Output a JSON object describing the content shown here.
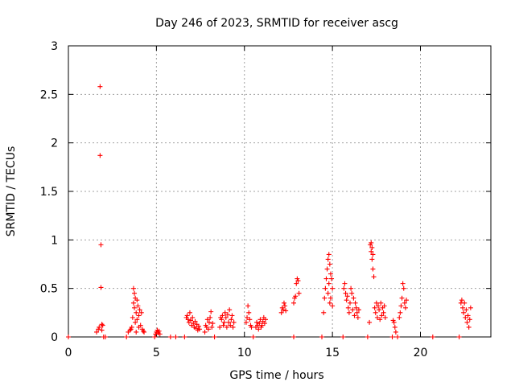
{
  "chart_data": {
    "type": "scatter",
    "title": "Day 246 of 2023, SRMTID for receiver ascg",
    "xlabel": "GPS time / hours",
    "ylabel": "SRMTID / TECUs",
    "xlim": [
      0,
      24
    ],
    "ylim": [
      0,
      3
    ],
    "xticks": [
      0,
      5,
      10,
      15,
      20
    ],
    "xtick_labels": [
      "0",
      "5",
      "10",
      "15",
      "20"
    ],
    "yticks": [
      0,
      0.5,
      1,
      1.5,
      2,
      2.5,
      3
    ],
    "ytick_labels": [
      "0",
      "0.5",
      "1",
      "1.5",
      "2",
      "2.5",
      "3"
    ],
    "grid": true,
    "marker": "+",
    "color": "#ff0000",
    "series": [
      {
        "name": "SRMTID",
        "x": [
          0.0,
          1.6,
          1.7,
          1.75,
          1.8,
          1.8,
          1.85,
          1.85,
          1.9,
          1.9,
          1.95,
          2.0,
          2.1,
          3.3,
          3.4,
          3.5,
          3.55,
          3.6,
          3.65,
          3.7,
          3.7,
          3.75,
          3.75,
          3.8,
          3.8,
          3.85,
          3.85,
          3.9,
          3.9,
          3.95,
          4.0,
          4.0,
          4.05,
          4.1,
          4.15,
          4.2,
          4.25,
          4.3,
          4.9,
          4.95,
          5.0,
          5.05,
          5.1,
          5.15,
          5.2,
          5.8,
          6.1,
          6.6,
          6.7,
          6.75,
          6.8,
          6.85,
          6.9,
          6.95,
          7.0,
          7.05,
          7.1,
          7.15,
          7.2,
          7.25,
          7.3,
          7.35,
          7.4,
          7.45,
          7.75,
          7.8,
          7.85,
          7.9,
          7.95,
          8.0,
          8.05,
          8.1,
          8.15,
          8.2,
          8.3,
          8.6,
          8.65,
          8.7,
          8.75,
          8.8,
          8.85,
          8.9,
          8.95,
          9.0,
          9.05,
          9.1,
          9.15,
          9.2,
          9.25,
          9.3,
          9.35,
          9.4,
          10.1,
          10.15,
          10.2,
          10.25,
          10.3,
          10.35,
          10.4,
          10.5,
          10.65,
          10.7,
          10.75,
          10.8,
          10.85,
          10.9,
          10.95,
          11.0,
          11.05,
          11.1,
          11.15,
          11.2,
          12.1,
          12.15,
          12.2,
          12.25,
          12.3,
          12.35,
          12.8,
          12.8,
          12.85,
          12.9,
          12.95,
          13.0,
          13.05,
          13.1,
          14.4,
          14.5,
          14.55,
          14.6,
          14.65,
          14.7,
          14.75,
          14.75,
          14.8,
          14.8,
          14.85,
          14.85,
          14.9,
          14.9,
          14.95,
          15.0,
          15.0,
          15.6,
          15.65,
          15.7,
          15.75,
          15.8,
          15.85,
          15.9,
          15.95,
          16.0,
          16.05,
          16.1,
          16.15,
          16.2,
          16.25,
          16.3,
          16.35,
          16.4,
          16.45,
          16.5,
          17.0,
          17.1,
          17.15,
          17.2,
          17.2,
          17.25,
          17.25,
          17.3,
          17.3,
          17.35,
          17.4,
          17.45,
          17.5,
          17.55,
          17.6,
          17.65,
          17.7,
          17.75,
          17.8,
          17.85,
          17.9,
          17.95,
          18.0,
          18.4,
          18.45,
          18.5,
          18.55,
          18.6,
          18.7,
          18.8,
          18.85,
          18.9,
          18.95,
          19.0,
          19.05,
          19.1,
          19.15,
          19.2,
          20.7,
          22.2,
          22.3,
          22.35,
          22.4,
          22.45,
          22.5,
          22.55,
          22.6,
          22.65,
          22.7,
          22.75,
          22.8,
          22.85
        ],
        "y": [
          0.0,
          0.05,
          0.08,
          0.1,
          2.58,
          1.87,
          0.95,
          0.51,
          0.13,
          0.07,
          0.12,
          0.0,
          0.0,
          0.0,
          0.05,
          0.07,
          0.08,
          0.1,
          0.2,
          0.35,
          0.5,
          0.45,
          0.3,
          0.4,
          0.15,
          0.25,
          0.05,
          0.38,
          0.18,
          0.32,
          0.22,
          0.1,
          0.28,
          0.12,
          0.25,
          0.08,
          0.06,
          0.05,
          0.0,
          0.03,
          0.05,
          0.07,
          0.04,
          0.06,
          0.03,
          0.0,
          0.0,
          0.0,
          0.2,
          0.22,
          0.18,
          0.15,
          0.25,
          0.17,
          0.12,
          0.2,
          0.14,
          0.1,
          0.16,
          0.09,
          0.13,
          0.07,
          0.11,
          0.08,
          0.05,
          0.12,
          0.1,
          0.18,
          0.08,
          0.15,
          0.2,
          0.26,
          0.1,
          0.14,
          0.0,
          0.1,
          0.2,
          0.18,
          0.22,
          0.12,
          0.15,
          0.25,
          0.2,
          0.1,
          0.23,
          0.15,
          0.28,
          0.12,
          0.18,
          0.22,
          0.1,
          0.15,
          0.15,
          0.2,
          0.32,
          0.25,
          0.18,
          0.12,
          0.1,
          0.0,
          0.1,
          0.15,
          0.12,
          0.08,
          0.14,
          0.18,
          0.1,
          0.12,
          0.16,
          0.2,
          0.14,
          0.18,
          0.25,
          0.3,
          0.28,
          0.35,
          0.32,
          0.27,
          0.0,
          0.35,
          0.4,
          0.42,
          0.55,
          0.6,
          0.58,
          0.45,
          0.0,
          0.25,
          0.4,
          0.5,
          0.6,
          0.7,
          0.8,
          0.45,
          0.85,
          0.55,
          0.75,
          0.35,
          0.65,
          0.4,
          0.6,
          0.5,
          0.32,
          0.0,
          0.5,
          0.55,
          0.45,
          0.38,
          0.42,
          0.3,
          0.25,
          0.35,
          0.5,
          0.45,
          0.28,
          0.4,
          0.22,
          0.35,
          0.3,
          0.25,
          0.2,
          0.28,
          0.0,
          0.15,
          0.95,
          0.97,
          0.88,
          0.92,
          0.8,
          0.85,
          0.7,
          0.62,
          0.3,
          0.25,
          0.35,
          0.2,
          0.32,
          0.28,
          0.18,
          0.35,
          0.22,
          0.3,
          0.25,
          0.32,
          0.2,
          0.0,
          0.17,
          0.15,
          0.1,
          0.05,
          0.0,
          0.2,
          0.25,
          0.32,
          0.4,
          0.55,
          0.5,
          0.35,
          0.3,
          0.38,
          0.0,
          0.0,
          0.35,
          0.38,
          0.3,
          0.25,
          0.35,
          0.2,
          0.28,
          0.15,
          0.22,
          0.1,
          0.18,
          0.3
        ]
      }
    ]
  }
}
